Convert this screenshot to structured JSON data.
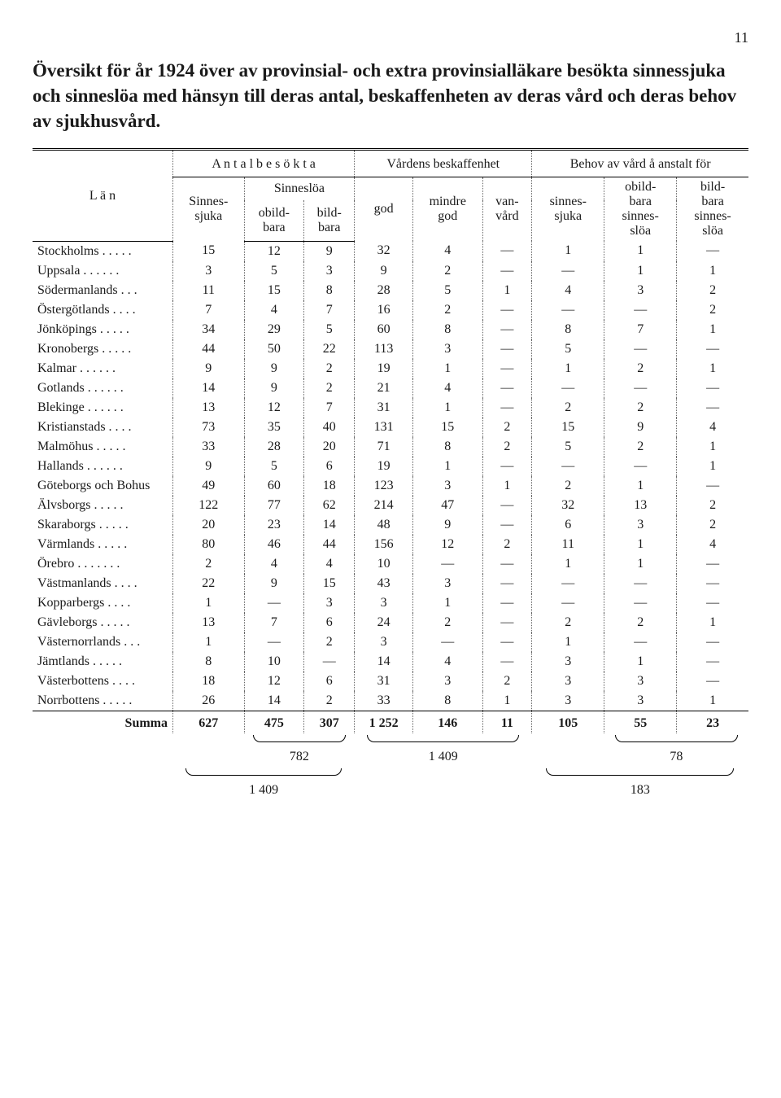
{
  "page_number": "11",
  "title": "Översikt för år 1924 över av provinsial- och extra provinsialläkare besökta sinnessjuka och sinneslöa med hänsyn till deras antal, beskaffenheten av deras vård och deras behov av sjukhusvård.",
  "headers": {
    "col_lan": "L ä n",
    "group_antal": "A n t a l  b e s ö k t a",
    "group_vard": "Vårdens beskaffenhet",
    "group_behov": "Behov av vård å anstalt för",
    "sinnessjuka": "Sinnes-\nsjuka",
    "sinneslosa": "Sinneslöa",
    "obildbara": "obild-\nbara",
    "bildbara": "bild-\nbara",
    "god": "god",
    "mindre_god": "mindre\ngod",
    "vanvard": "van-\nvård",
    "beh_sinnessjuka": "sinnes-\nsjuka",
    "beh_obild": "obild-\nbara\nsinnes-\nslöa",
    "beh_bild": "bild-\nbara\nsinnes-\nslöa"
  },
  "rows": [
    {
      "c": "Stockholms . . . . .",
      "v": [
        "15",
        "12",
        "9",
        "32",
        "4",
        "—",
        "1",
        "1",
        "—"
      ]
    },
    {
      "c": "Uppsala . . . . . .",
      "v": [
        "3",
        "5",
        "3",
        "9",
        "2",
        "—",
        "—",
        "1",
        "1"
      ]
    },
    {
      "c": "Södermanlands . . .",
      "v": [
        "11",
        "15",
        "8",
        "28",
        "5",
        "1",
        "4",
        "3",
        "2"
      ]
    },
    {
      "c": "Östergötlands . . . .",
      "v": [
        "7",
        "4",
        "7",
        "16",
        "2",
        "—",
        "—",
        "—",
        "2"
      ]
    },
    {
      "c": "Jönköpings . . . . .",
      "v": [
        "34",
        "29",
        "5",
        "60",
        "8",
        "—",
        "8",
        "7",
        "1"
      ]
    },
    {
      "c": "Kronobergs . . . . .",
      "v": [
        "44",
        "50",
        "22",
        "113",
        "3",
        "—",
        "5",
        "—",
        "—"
      ]
    },
    {
      "c": "Kalmar  . . . . . .",
      "v": [
        "9",
        "9",
        "2",
        "19",
        "1",
        "—",
        "1",
        "2",
        "1"
      ]
    },
    {
      "c": "Gotlands . . . . . .",
      "v": [
        "14",
        "9",
        "2",
        "21",
        "4",
        "—",
        "—",
        "—",
        "—"
      ]
    },
    {
      "c": "Blekinge . . . . . .",
      "v": [
        "13",
        "12",
        "7",
        "31",
        "1",
        "—",
        "2",
        "2",
        "—"
      ]
    },
    {
      "c": "Kristianstads . . . .",
      "v": [
        "73",
        "35",
        "40",
        "131",
        "15",
        "2",
        "15",
        "9",
        "4"
      ]
    },
    {
      "c": "Malmöhus  . . . . .",
      "v": [
        "33",
        "28",
        "20",
        "71",
        "8",
        "2",
        "5",
        "2",
        "1"
      ]
    },
    {
      "c": "Hallands . . . . . .",
      "v": [
        "9",
        "5",
        "6",
        "19",
        "1",
        "—",
        "—",
        "—",
        "1"
      ]
    },
    {
      "c": "Göteborgs och Bohus",
      "v": [
        "49",
        "60",
        "18",
        "123",
        "3",
        "1",
        "2",
        "1",
        "—"
      ]
    },
    {
      "c": "Älvsborgs  . . . . .",
      "v": [
        "122",
        "77",
        "62",
        "214",
        "47",
        "—",
        "32",
        "13",
        "2"
      ]
    },
    {
      "c": "Skaraborgs . . . . .",
      "v": [
        "20",
        "23",
        "14",
        "48",
        "9",
        "—",
        "6",
        "3",
        "2"
      ]
    },
    {
      "c": "Värmlands . . . . .",
      "v": [
        "80",
        "46",
        "44",
        "156",
        "12",
        "2",
        "11",
        "1",
        "4"
      ]
    },
    {
      "c": "Örebro . . . . . . .",
      "v": [
        "2",
        "4",
        "4",
        "10",
        "—",
        "—",
        "1",
        "1",
        "—"
      ]
    },
    {
      "c": "Västmanlands . . . .",
      "v": [
        "22",
        "9",
        "15",
        "43",
        "3",
        "—",
        "—",
        "—",
        "—"
      ]
    },
    {
      "c": "Kopparbergs . . . .",
      "v": [
        "1",
        "—",
        "3",
        "3",
        "1",
        "—",
        "—",
        "—",
        "—"
      ]
    },
    {
      "c": "Gävleborgs . . . . .",
      "v": [
        "13",
        "7",
        "6",
        "24",
        "2",
        "—",
        "2",
        "2",
        "1"
      ]
    },
    {
      "c": "Västernorrlands . . .",
      "v": [
        "1",
        "—",
        "2",
        "3",
        "—",
        "—",
        "1",
        "—",
        "—"
      ]
    },
    {
      "c": "Jämtlands  . . . . .",
      "v": [
        "8",
        "10",
        "—",
        "14",
        "4",
        "—",
        "3",
        "1",
        "—"
      ]
    },
    {
      "c": "Västerbottens . . . .",
      "v": [
        "18",
        "12",
        "6",
        "31",
        "3",
        "2",
        "3",
        "3",
        "—"
      ]
    },
    {
      "c": "Norrbottens . . . . .",
      "v": [
        "26",
        "14",
        "2",
        "33",
        "8",
        "1",
        "3",
        "3",
        "1"
      ]
    }
  ],
  "summa_label": "Summa",
  "summa": [
    "627",
    "475",
    "307",
    "1 252",
    "146",
    "11",
    "105",
    "55",
    "23"
  ],
  "braces": {
    "b1": "782",
    "b2": "1 409",
    "b3": "78",
    "b4": "1 409",
    "b5": "183"
  }
}
